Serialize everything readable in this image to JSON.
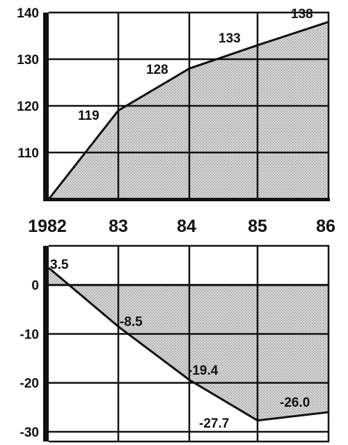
{
  "chart_data": [
    {
      "type": "area",
      "categories": [
        "1982",
        "83",
        "84",
        "85",
        "86"
      ],
      "x": [
        1982,
        1983,
        1984,
        1985,
        1986
      ],
      "values": [
        100,
        119,
        128,
        133,
        138
      ],
      "data_labels": [
        "",
        "119",
        "128",
        "133",
        "138"
      ],
      "yticks": [
        "140",
        "130",
        "120",
        "110"
      ],
      "ytick_values": [
        140,
        130,
        120,
        110
      ],
      "ylim": [
        100,
        140
      ],
      "grid": true,
      "colors": {
        "fill": "#c4c4c4",
        "line": "#111111"
      }
    },
    {
      "type": "area",
      "x": [
        1982,
        1983,
        1984,
        1985,
        1986
      ],
      "values": [
        3.5,
        -8.5,
        -19.4,
        -27.7,
        -26.0
      ],
      "data_labels": [
        "3.5",
        "-8.5",
        "-19.4",
        "-27.7",
        "-26.0"
      ],
      "yticks": [
        "0",
        "-10",
        "-20",
        "-30"
      ],
      "ytick_values": [
        0,
        -10,
        -20,
        -30
      ],
      "ylim": [
        -32,
        8
      ],
      "grid": true,
      "colors": {
        "fill": "#c4c4c4",
        "line": "#111111"
      }
    }
  ]
}
